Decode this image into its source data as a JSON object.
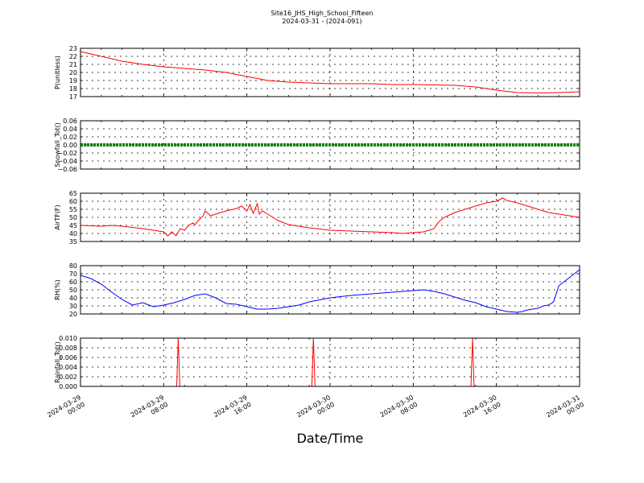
{
  "header": {
    "title": "Site16_JHS_High_School_Fifteen",
    "subtitle": "2024-03-31 - (2024-091)"
  },
  "chart_data": [
    {
      "type": "line",
      "ylabel": "P(unitless)",
      "ylim": [
        17,
        23
      ],
      "yticks": [
        "23",
        "22",
        "21",
        "20",
        "19",
        "18",
        "17"
      ],
      "grid": true,
      "series": [
        {
          "color": "#ff0000",
          "x": [
            0,
            2,
            4,
            6,
            8,
            10,
            12,
            14,
            16,
            18,
            20,
            22,
            24,
            26,
            28,
            30,
            32,
            34,
            36,
            38,
            40,
            42,
            44,
            46,
            48
          ],
          "y": [
            22.6,
            22.0,
            21.4,
            21.0,
            20.7,
            20.5,
            20.3,
            20.0,
            19.5,
            19.0,
            18.8,
            18.7,
            18.6,
            18.6,
            18.6,
            18.5,
            18.5,
            18.45,
            18.4,
            18.2,
            17.8,
            17.5,
            17.45,
            17.5,
            17.6
          ]
        }
      ]
    },
    {
      "type": "line",
      "ylabel": "Snowfall_Tot()",
      "ylim": [
        -0.06,
        0.06
      ],
      "yticks": [
        "0.06",
        "0.04",
        "0.02",
        "0.00",
        "−0.02",
        "−0.04",
        "−0.06"
      ],
      "grid": true,
      "series": [
        {
          "color": "#008000",
          "style": "dotted-thick",
          "x": [
            0,
            48
          ],
          "y": [
            0,
            0
          ]
        }
      ]
    },
    {
      "type": "line",
      "ylabel": "AirTF(F)",
      "ylim": [
        35,
        65
      ],
      "yticks": [
        "65",
        "60",
        "55",
        "50",
        "45",
        "40",
        "35"
      ],
      "grid": true,
      "series": [
        {
          "color": "#ff0000",
          "x": [
            0,
            2,
            3,
            4,
            6,
            7,
            8,
            8.4,
            8.8,
            9.2,
            9.6,
            10,
            10.4,
            10.8,
            11,
            11.4,
            11.8,
            12,
            12.5,
            13,
            14,
            15,
            15.5,
            16,
            16.3,
            16.6,
            17,
            17.2,
            17.5,
            18,
            19,
            20,
            22,
            24,
            26,
            28,
            30,
            31,
            32,
            33,
            34,
            34.3,
            34.6,
            35,
            36,
            37,
            38,
            39,
            40,
            40.6,
            41,
            42,
            43,
            44,
            45,
            46,
            46.5,
            47,
            48
          ],
          "y": [
            45,
            44.5,
            45,
            44.5,
            43,
            42,
            41,
            38.5,
            41,
            38.5,
            43,
            42,
            45,
            46.5,
            45.5,
            48.5,
            51,
            54,
            51,
            52,
            54,
            55.5,
            57,
            54,
            58,
            52.5,
            58.5,
            52,
            54,
            52,
            48,
            45.5,
            43.5,
            42,
            41.5,
            41,
            40.5,
            40,
            40.5,
            41,
            43,
            46,
            48,
            50,
            53,
            55,
            57,
            59,
            60,
            62,
            60.5,
            59,
            57,
            55,
            53,
            52,
            51.5,
            51,
            50
          ]
        }
      ]
    },
    {
      "type": "line",
      "ylabel": "RH(%)",
      "ylim": [
        20,
        80
      ],
      "yticks": [
        "80",
        "70",
        "60",
        "50",
        "40",
        "30",
        "20"
      ],
      "grid": true,
      "series": [
        {
          "color": "#0000ff",
          "x": [
            0,
            1,
            2,
            3,
            4,
            5,
            6,
            7,
            8,
            9,
            10,
            11,
            12,
            13,
            14,
            15,
            16,
            17,
            18,
            19,
            20,
            21,
            22,
            24,
            26,
            28,
            30,
            31,
            32,
            33,
            34,
            35,
            36,
            37,
            38,
            39,
            40,
            41,
            42,
            42.5,
            43,
            44,
            44.5,
            45,
            45.5,
            46,
            47,
            48
          ],
          "y": [
            68,
            64,
            57,
            47,
            38,
            31,
            34,
            29,
            31,
            34,
            38,
            43,
            45,
            40,
            33,
            32,
            29,
            26,
            26,
            27,
            29,
            31,
            35,
            40,
            43,
            45,
            47,
            48,
            49,
            50,
            48,
            45,
            41,
            37,
            34,
            29,
            26,
            23,
            22,
            23,
            25,
            27,
            30,
            31,
            35,
            55,
            65,
            75
          ]
        }
      ]
    },
    {
      "type": "line",
      "ylabel": "Rainfall_Tot()",
      "ylim": [
        0,
        0.01
      ],
      "yticks": [
        "0.010",
        "0.008",
        "0.006",
        "0.004",
        "0.002",
        "0.000"
      ],
      "grid": true,
      "series": [
        {
          "color": "#ff0000",
          "x": [
            0,
            9.25,
            9.4,
            9.55,
            22.25,
            22.4,
            22.55,
            37.55,
            37.7,
            37.85,
            48
          ],
          "y": [
            0,
            0,
            0.01,
            0,
            0,
            0.01,
            0,
            0,
            0.01,
            0,
            0
          ]
        }
      ]
    }
  ],
  "xaxis": {
    "label": "Date/Time",
    "ticks": [
      {
        "line1": "2024-03-29",
        "line2": "00:00"
      },
      {
        "line1": "2024-03-29",
        "line2": "08:00"
      },
      {
        "line1": "2024-03-29",
        "line2": "16:00"
      },
      {
        "line1": "2024-03-30",
        "line2": "00:00"
      },
      {
        "line1": "2024-03-30",
        "line2": "08:00"
      },
      {
        "line1": "2024-03-30",
        "line2": "16:00"
      },
      {
        "line1": "2024-03-31",
        "line2": "00:00"
      }
    ]
  }
}
